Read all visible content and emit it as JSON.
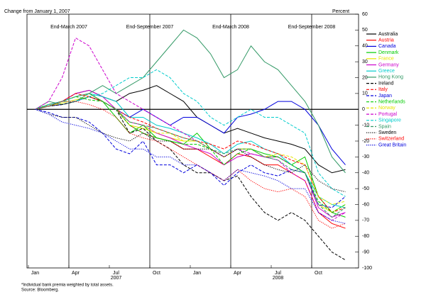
{
  "chart_data": {
    "type": "line",
    "ylabel": "Change from January 1, 2007",
    "y_unit_label": "Percent",
    "categories": [
      "Jan",
      null,
      null,
      "Apr",
      null,
      null,
      "Jul",
      null,
      null,
      "Oct",
      null,
      null,
      "Jan",
      null,
      null,
      "Apr",
      null,
      null,
      "Jul",
      null,
      null,
      "Oct",
      null,
      null
    ],
    "year_labels": [
      "2007",
      "2008"
    ],
    "vlines": [
      "End-March 2007",
      "End-September 2007",
      "End-March 2008",
      "End-September 2008"
    ],
    "ylim": [
      -100,
      60
    ],
    "yticks": [
      60,
      50,
      40,
      30,
      20,
      10,
      0,
      -10,
      -20,
      -30,
      -40,
      -50,
      -60,
      -70,
      -80,
      -90,
      -100
    ],
    "zero_line": true,
    "legend": "right",
    "series": [
      {
        "name": "Australia",
        "color": "#000000",
        "style": "solid",
        "values": [
          0,
          3,
          5,
          10,
          12,
          8,
          5,
          10,
          12,
          15,
          10,
          5,
          -5,
          -10,
          -15,
          -12,
          -15,
          -18,
          -20,
          -22,
          -25,
          -35,
          -40,
          -38
        ]
      },
      {
        "name": "Austria",
        "color": "#ff0000",
        "style": "solid",
        "values": [
          0,
          2,
          5,
          8,
          10,
          5,
          0,
          -10,
          -15,
          -18,
          -20,
          -25,
          -25,
          -30,
          -35,
          -28,
          -30,
          -35,
          -35,
          -40,
          -45,
          -65,
          -72,
          -75
        ]
      },
      {
        "name": "Canada",
        "color": "#0000dd",
        "style": "solid",
        "values": [
          0,
          2,
          3,
          5,
          8,
          5,
          0,
          -5,
          0,
          -5,
          -10,
          -5,
          -5,
          -10,
          -15,
          -5,
          -3,
          0,
          5,
          5,
          0,
          -10,
          -25,
          -35
        ]
      },
      {
        "name": "Denmark",
        "color": "#00cc00",
        "style": "solid",
        "values": [
          0,
          3,
          5,
          8,
          10,
          5,
          -5,
          -15,
          -10,
          -18,
          -20,
          -22,
          -15,
          -25,
          -30,
          -25,
          -25,
          -28,
          -30,
          -35,
          -30,
          -55,
          -65,
          -68
        ]
      },
      {
        "name": "France",
        "color": "#e6e600",
        "style": "solid",
        "values": [
          0,
          2,
          4,
          6,
          8,
          5,
          0,
          -10,
          -12,
          -15,
          -18,
          -20,
          -20,
          -25,
          -30,
          -25,
          -25,
          -30,
          -30,
          -35,
          -40,
          -60,
          -65,
          -60
        ]
      },
      {
        "name": "Germany",
        "color": "#cc00cc",
        "style": "solid",
        "values": [
          0,
          2,
          5,
          10,
          12,
          8,
          0,
          -8,
          -10,
          -15,
          -18,
          -22,
          -25,
          -28,
          -35,
          -30,
          -28,
          -30,
          -30,
          -35,
          -40,
          -62,
          -68,
          -65
        ]
      },
      {
        "name": "Greece",
        "color": "#00cccc",
        "style": "solid",
        "values": [
          0,
          2,
          5,
          8,
          10,
          8,
          5,
          -5,
          -5,
          -10,
          -12,
          -15,
          -18,
          -22,
          -28,
          -22,
          -20,
          -25,
          -28,
          -35,
          -40,
          -55,
          -60,
          -62
        ]
      },
      {
        "name": "Hong Kong",
        "color": "#339966",
        "style": "solid",
        "values": [
          0,
          5,
          3,
          5,
          10,
          15,
          10,
          15,
          20,
          30,
          40,
          50,
          45,
          35,
          20,
          25,
          40,
          30,
          25,
          15,
          5,
          -10,
          -30,
          -40
        ]
      },
      {
        "name": "Ireland",
        "color": "#000000",
        "style": "dashed",
        "values": [
          0,
          2,
          3,
          5,
          8,
          5,
          0,
          -15,
          -12,
          -20,
          -25,
          -35,
          -40,
          -40,
          -45,
          -42,
          -55,
          -65,
          -70,
          -65,
          -70,
          -80,
          -90,
          -95
        ]
      },
      {
        "name": "Italy",
        "color": "#ff0000",
        "style": "dashed",
        "values": [
          0,
          3,
          5,
          10,
          8,
          5,
          0,
          -5,
          -8,
          -12,
          -15,
          -18,
          -20,
          -22,
          -25,
          -20,
          -22,
          -25,
          -28,
          -32,
          -35,
          -55,
          -65,
          -62
        ]
      },
      {
        "name": "Japan",
        "color": "#0000dd",
        "style": "dashed",
        "values": [
          0,
          -2,
          -5,
          -5,
          -8,
          -15,
          -25,
          -28,
          -20,
          -35,
          -35,
          -40,
          -35,
          -40,
          -48,
          -40,
          -35,
          -40,
          -42,
          -38,
          -40,
          -60,
          -62,
          -55
        ]
      },
      {
        "name": "Netherlands",
        "color": "#00cc00",
        "style": "dashed",
        "values": [
          0,
          2,
          5,
          8,
          6,
          5,
          0,
          -10,
          -15,
          -18,
          -20,
          -22,
          -22,
          -25,
          -35,
          -28,
          -25,
          -30,
          -30,
          -35,
          -40,
          -58,
          -65,
          -60
        ]
      },
      {
        "name": "Norway",
        "color": "#e6e600",
        "style": "dashed",
        "values": [
          0,
          2,
          5,
          8,
          10,
          5,
          0,
          -8,
          -10,
          -15,
          -15,
          -20,
          -20,
          -25,
          -30,
          -25,
          -25,
          -30,
          -28,
          -30,
          -35,
          -55,
          -60,
          -58
        ]
      },
      {
        "name": "Portugal",
        "color": "#cc00cc",
        "style": "dashed",
        "values": [
          0,
          5,
          20,
          45,
          40,
          25,
          10,
          5,
          0,
          -5,
          -10,
          -15,
          -20,
          -25,
          -30,
          -25,
          -28,
          -30,
          -32,
          -40,
          -45,
          -65,
          -70,
          -65
        ]
      },
      {
        "name": "Singapore",
        "color": "#00cccc",
        "style": "dashed",
        "values": [
          0,
          3,
          5,
          5,
          8,
          10,
          15,
          20,
          20,
          25,
          20,
          10,
          5,
          -5,
          -10,
          -5,
          0,
          -5,
          -5,
          -10,
          -15,
          -40,
          -50,
          -55
        ]
      },
      {
        "name": "Spain",
        "color": "#339966",
        "style": "dashed",
        "values": [
          0,
          2,
          5,
          8,
          10,
          5,
          0,
          -8,
          -10,
          -12,
          -15,
          -18,
          -20,
          -25,
          -28,
          -25,
          -25,
          -30,
          -32,
          -38,
          -40,
          -60,
          -68,
          -62
        ]
      },
      {
        "name": "Sweden",
        "color": "#000000",
        "style": "dotted",
        "values": [
          0,
          -3,
          -5,
          -5,
          -10,
          -15,
          -18,
          -20,
          -15,
          -20,
          -20,
          -25,
          -25,
          -25,
          -30,
          -25,
          -30,
          -35,
          -38,
          -40,
          -35,
          -45,
          -50,
          -52
        ]
      },
      {
        "name": "Switzerland",
        "color": "#ff0000",
        "style": "dotted",
        "values": [
          0,
          2,
          5,
          5,
          3,
          0,
          -5,
          -15,
          -18,
          -20,
          -25,
          -30,
          -35,
          -40,
          -45,
          -38,
          -45,
          -50,
          -52,
          -50,
          -55,
          -70,
          -75,
          -72
        ]
      },
      {
        "name": "Great Britain",
        "color": "#0000dd",
        "style": "dotted",
        "values": [
          0,
          -3,
          -8,
          -10,
          -12,
          -15,
          -20,
          -25,
          -25,
          -30,
          -30,
          -35,
          -35,
          -40,
          -45,
          -38,
          -40,
          -42,
          -45,
          -50,
          -50,
          -65,
          -70,
          -72
        ]
      }
    ],
    "footnotes": [
      "*Individual bank premia weighted by total assets.",
      "Source: Bloomberg."
    ]
  }
}
